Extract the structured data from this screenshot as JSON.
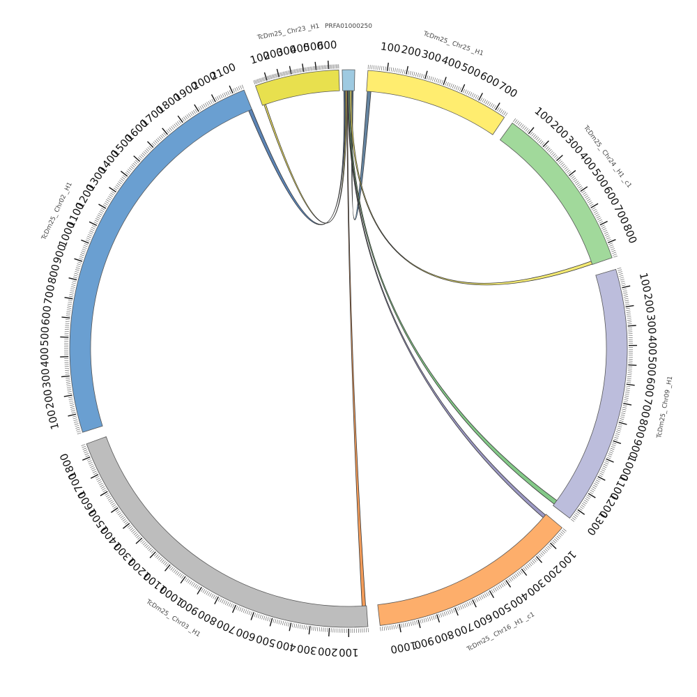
{
  "chart_data": {
    "type": "chord",
    "segments": [
      {
        "id": "prfa",
        "name": "PRFA01000250",
        "length": 30,
        "start_deg": -1.3,
        "end_deg": 1.3,
        "color": "#9ecae1",
        "ticks": []
      },
      {
        "id": "chr25",
        "name": "TcDm25_ Chr25 _H1",
        "length": 760,
        "start_deg": 4.0,
        "end_deg": 34.0,
        "color": "#ffed6f",
        "ticks": [
          100,
          200,
          300,
          400,
          500,
          600,
          700
        ]
      },
      {
        "id": "chr24",
        "name": "TcDm25_ Chr24 _H1 _c1",
        "length": 880,
        "start_deg": 36.0,
        "end_deg": 71.0,
        "color": "#a1d99b",
        "ticks": [
          100,
          200,
          300,
          400,
          500,
          600,
          700,
          800
        ]
      },
      {
        "id": "chr09",
        "name": "TcDm25_ Chr09 _H1",
        "length": 1360,
        "start_deg": 73.5,
        "end_deg": 127.5,
        "color": "#bcbddc",
        "ticks": [
          100,
          200,
          300,
          400,
          500,
          600,
          700,
          800,
          900,
          1000,
          1100,
          1200,
          1300
        ]
      },
      {
        "id": "chr16",
        "name": "TcDm25_ Chr16 _H1 _c1",
        "length": 1100,
        "start_deg": 130.0,
        "end_deg": 173.5,
        "color": "#fdae6b",
        "ticks": [
          100,
          200,
          300,
          400,
          500,
          600,
          700,
          800,
          900,
          1000
        ]
      },
      {
        "id": "chr03",
        "name": "TcDm25_ Chr03 _H1",
        "length": 1870,
        "start_deg": 176.0,
        "end_deg": 250.0,
        "color": "#bdbdbd",
        "ticks": [
          100,
          200,
          300,
          400,
          500,
          600,
          700,
          800,
          900,
          1000,
          1100,
          1200,
          1300,
          1400,
          1500,
          1600,
          1700,
          1800
        ]
      },
      {
        "id": "chr02",
        "name": "TcDm25_ Chr02 _H1",
        "length": 2160,
        "start_deg": 252.5,
        "end_deg": 338.0,
        "color": "#6a9fd1",
        "ticks": [
          100,
          200,
          300,
          400,
          500,
          600,
          700,
          800,
          900,
          1000,
          1100,
          1200,
          1300,
          1400,
          1500,
          1600,
          1700,
          1800,
          1900,
          2000,
          2100
        ]
      },
      {
        "id": "chr23",
        "name": "TcDm25_ Chr23 _H1",
        "length": 680,
        "start_deg": 340.5,
        "end_deg": 358.0,
        "color": "#e8e04e",
        "ticks": [
          100,
          200,
          300,
          400,
          500,
          600
        ]
      }
    ],
    "links": [
      {
        "from": "prfa",
        "from_pos": [
          3,
          6
        ],
        "to": "chr02",
        "to_pos": [
          2140,
          2160
        ],
        "color": "#3f6fa8"
      },
      {
        "from": "prfa",
        "from_pos": [
          7,
          10
        ],
        "to": "chr23",
        "to_pos": [
          15,
          30
        ],
        "color": "#e8d84a"
      },
      {
        "from": "prfa",
        "from_pos": [
          24,
          27
        ],
        "to": "chr25",
        "to_pos": [
          5,
          25
        ],
        "color": "#4a6f8f"
      },
      {
        "from": "prfa",
        "from_pos": [
          19,
          23
        ],
        "to": "chr24",
        "to_pos": [
          860,
          878
        ],
        "color": "#f2e65a"
      },
      {
        "from": "prfa",
        "from_pos": [
          15,
          18
        ],
        "to": "chr09",
        "to_pos": [
          1325,
          1350
        ],
        "color": "#6fbf73"
      },
      {
        "from": "prfa",
        "from_pos": [
          12,
          14
        ],
        "to": "chr16",
        "to_pos": [
          5,
          25
        ],
        "color": "#8a86b8"
      },
      {
        "from": "prfa",
        "from_pos": [
          10,
          12
        ],
        "to": "chr03",
        "to_pos": [
          5,
          25
        ],
        "color": "#f08a3c"
      }
    ]
  }
}
